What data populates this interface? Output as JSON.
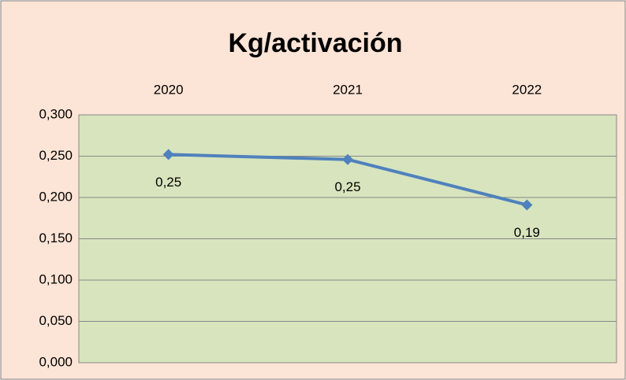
{
  "chart_data": {
    "type": "line",
    "title": "Kg/activación",
    "categories": [
      "2020",
      "2021",
      "2022"
    ],
    "values": [
      0.252,
      0.246,
      0.191
    ],
    "value_labels": [
      "0,25",
      "0,25",
      "0,19"
    ],
    "color": "#4f81bd",
    "ylim": [
      0,
      0.3
    ],
    "yticks": [
      {
        "value": 0,
        "label": "0,000"
      },
      {
        "value": 0.05,
        "label": "0,050"
      },
      {
        "value": 0.1,
        "label": "0,100"
      },
      {
        "value": 0.15,
        "label": "0,150"
      },
      {
        "value": 0.2,
        "label": "0,200"
      },
      {
        "value": 0.25,
        "label": "0,250"
      },
      {
        "value": 0.3,
        "label": "0,300"
      }
    ],
    "grid": true
  }
}
